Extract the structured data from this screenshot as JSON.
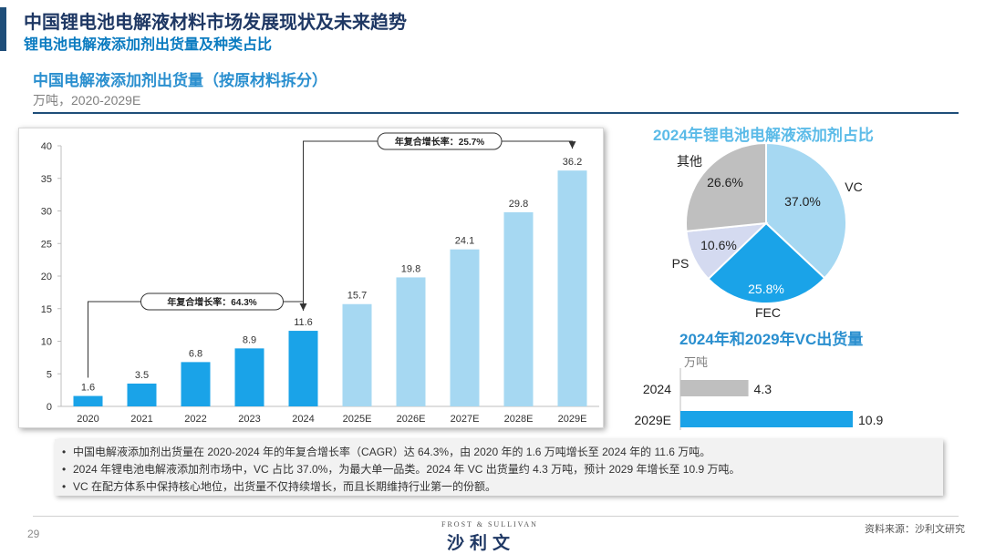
{
  "header": {
    "title": "中国锂电池电解液材料市场发展现状及未来趋势",
    "subtitle": "锂电池电解液添加剂出货量及种类占比"
  },
  "section": {
    "title": "中国电解液添加剂出货量（按原材料拆分）",
    "unit": "万吨，2020-2029E"
  },
  "colors": {
    "actual": "#1aa3e8",
    "forecast": "#a6d8f2",
    "title_dark": "#1f3864",
    "accent": "#0b7bc0",
    "gray": "#bfbfbf"
  },
  "chart_data": [
    {
      "type": "bar",
      "title": "中国电解液添加剂出货量（按原材料拆分）",
      "ylabel": "万吨",
      "categories": [
        "2020",
        "2021",
        "2022",
        "2023",
        "2024",
        "2025E",
        "2026E",
        "2027E",
        "2028E",
        "2029E"
      ],
      "values": [
        1.6,
        3.5,
        6.8,
        8.9,
        11.6,
        15.7,
        19.8,
        24.1,
        29.8,
        36.2
      ],
      "forecast_from_index": 5,
      "ylim": [
        0,
        40
      ],
      "yticks": [
        0,
        5,
        10,
        15,
        20,
        25,
        30,
        35,
        40
      ],
      "annotations": [
        {
          "label": "年复合增长率：64.3%",
          "from": "2020",
          "to": "2024"
        },
        {
          "label": "年复合增长率：25.7%",
          "from": "2024",
          "to": "2029E"
        }
      ]
    },
    {
      "type": "pie",
      "title": "2024年锂电池电解液添加剂占比",
      "slices": [
        {
          "name": "VC",
          "value": 37.0,
          "label": "37.0%",
          "color": "#a6d8f2"
        },
        {
          "name": "FEC",
          "value": 25.8,
          "label": "25.8%",
          "color": "#1aa3e8"
        },
        {
          "name": "PS",
          "value": 10.6,
          "label": "10.6%",
          "color": "#d4daf0"
        },
        {
          "name": "其他",
          "value": 26.6,
          "label": "26.6%",
          "color": "#bfbfbf"
        }
      ]
    },
    {
      "type": "bar",
      "orientation": "horizontal",
      "title": "2024年和2029年VC出货量",
      "unit": "万吨",
      "categories": [
        "2024",
        "2029E"
      ],
      "values": [
        4.3,
        10.9
      ],
      "colors": [
        "#bfbfbf",
        "#1aa3e8"
      ],
      "xlim": [
        0,
        10.9
      ]
    }
  ],
  "notes": [
    "中国电解液添加剂出货量在 2020-2024 年的年复合增长率（CAGR）达 64.3%，由 2020 年的 1.6 万吨增长至 2024 年的 11.6 万吨。",
    "2024 年锂电池电解液添加剂市场中，VC 占比 37.0%，为最大单一品类。2024 年 VC 出货量约 4.3 万吨，预计 2029 年增长至 10.9 万吨。",
    "VC 在配方体系中保持核心地位，出货量不仅持续增长，而且长期维持行业第一的份额。"
  ],
  "footer": {
    "page": "29",
    "brand_small": "FROST & SULLIVAN",
    "brand_big": "沙利文",
    "source": "资料来源：沙利文研究"
  }
}
